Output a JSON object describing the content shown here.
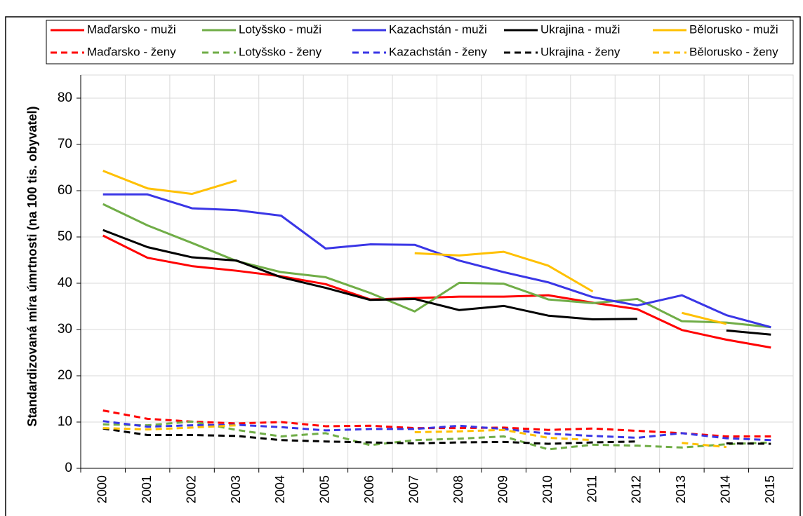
{
  "chart_data": {
    "type": "line",
    "y_label": "Standardizovaná míra úmrtnosti (na 100 tis. obyvatel)",
    "categories": [
      "2000",
      "2001",
      "2002",
      "2003",
      "2004",
      "2005",
      "2006",
      "2007",
      "2008",
      "2009",
      "2010",
      "2011",
      "2012",
      "2013",
      "2014",
      "2015"
    ],
    "ylim": [
      0,
      85
    ],
    "yticks": [
      0,
      10,
      20,
      30,
      40,
      50,
      60,
      70,
      80
    ],
    "grid": true,
    "legend": "top",
    "series": [
      {
        "name": "Maďarsko - muži",
        "color": "#ff0000",
        "linestyle": "solid",
        "values": [
          50.3,
          45.5,
          43.7,
          42.7,
          41.5,
          39.8,
          36.5,
          36.8,
          37.1,
          37.1,
          37.4,
          35.8,
          34.4,
          29.9,
          27.8,
          26.1
        ]
      },
      {
        "name": "Lotyšsko - muži",
        "color": "#70ad47",
        "linestyle": "solid",
        "values": [
          57.1,
          52.5,
          48.7,
          44.8,
          42.4,
          41.3,
          37.9,
          33.9,
          40.1,
          39.9,
          36.5,
          35.7,
          36.6,
          31.8,
          31.5,
          30.5
        ]
      },
      {
        "name": "Kazachstán - muži",
        "color": "#3a36e6",
        "linestyle": "solid",
        "values": [
          59.2,
          59.2,
          56.2,
          55.8,
          54.6,
          47.5,
          48.4,
          48.3,
          44.9,
          42.4,
          40.2,
          37.0,
          35.2,
          37.4,
          33.1,
          30.5
        ]
      },
      {
        "name": "Ukrajina - muži",
        "color": "#000000",
        "linestyle": "solid",
        "values": [
          51.5,
          47.8,
          45.6,
          44.9,
          41.3,
          39.0,
          36.4,
          36.6,
          34.2,
          35.1,
          33.0,
          32.2,
          32.3,
          null,
          29.8,
          28.9
        ]
      },
      {
        "name": "Bělorusko - muži",
        "color": "#ffc000",
        "linestyle": "solid",
        "values": [
          64.3,
          60.5,
          59.3,
          62.2,
          null,
          null,
          null,
          46.5,
          46.0,
          46.8,
          43.8,
          38.2,
          null,
          33.6,
          31.2,
          null
        ]
      },
      {
        "name": "Maďarsko - ženy",
        "color": "#ff0000",
        "linestyle": "dashed",
        "values": [
          12.5,
          10.7,
          10.1,
          9.7,
          10.0,
          9.1,
          9.2,
          8.7,
          8.7,
          8.8,
          8.3,
          8.6,
          8.1,
          7.6,
          6.9,
          6.9
        ]
      },
      {
        "name": "Lotyšsko - ženy",
        "color": "#70ad47",
        "linestyle": "dashed",
        "values": [
          9.5,
          9.3,
          10.1,
          8.3,
          6.9,
          7.6,
          5.0,
          6.1,
          6.4,
          6.9,
          4.1,
          5.1,
          4.9,
          4.5,
          5.2,
          5.6
        ]
      },
      {
        "name": "Kazachstán - ženy",
        "color": "#3a36e6",
        "linestyle": "dashed",
        "values": [
          10.2,
          9.0,
          9.3,
          9.4,
          8.9,
          8.2,
          8.5,
          8.5,
          9.2,
          8.5,
          7.5,
          7.0,
          6.6,
          7.6,
          6.5,
          6.1
        ]
      },
      {
        "name": "Ukrajina - ženy",
        "color": "#000000",
        "linestyle": "dashed",
        "values": [
          8.6,
          7.2,
          7.2,
          7.0,
          6.1,
          5.8,
          5.6,
          5.4,
          5.6,
          5.7,
          5.3,
          5.6,
          5.8,
          null,
          5.4,
          5.3
        ]
      },
      {
        "name": "Bělorusko - ženy",
        "color": "#ffc000",
        "linestyle": "dashed",
        "values": [
          8.7,
          8.4,
          8.8,
          9.3,
          null,
          null,
          null,
          7.8,
          8.0,
          8.3,
          6.6,
          6.1,
          null,
          5.5,
          4.6,
          null
        ]
      }
    ]
  }
}
